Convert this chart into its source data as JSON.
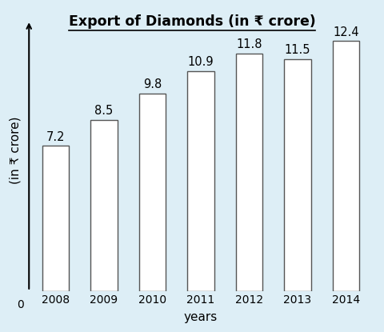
{
  "title": "Export of Diamonds (in ₹ crore)",
  "xlabel": "years",
  "ylabel": "(in ₹ crore)",
  "categories": [
    "2008",
    "2009",
    "2010",
    "2011",
    "2012",
    "2013",
    "2014"
  ],
  "values": [
    7.2,
    8.5,
    9.8,
    10.9,
    11.8,
    11.5,
    12.4
  ],
  "bar_color": "white",
  "bar_edgecolor": "#555555",
  "background_color": "#ddeef6",
  "ylim": [
    0,
    14
  ],
  "bar_width": 0.55,
  "label_fontsize": 10.5,
  "title_fontsize": 12.5,
  "axis_label_fontsize": 11
}
